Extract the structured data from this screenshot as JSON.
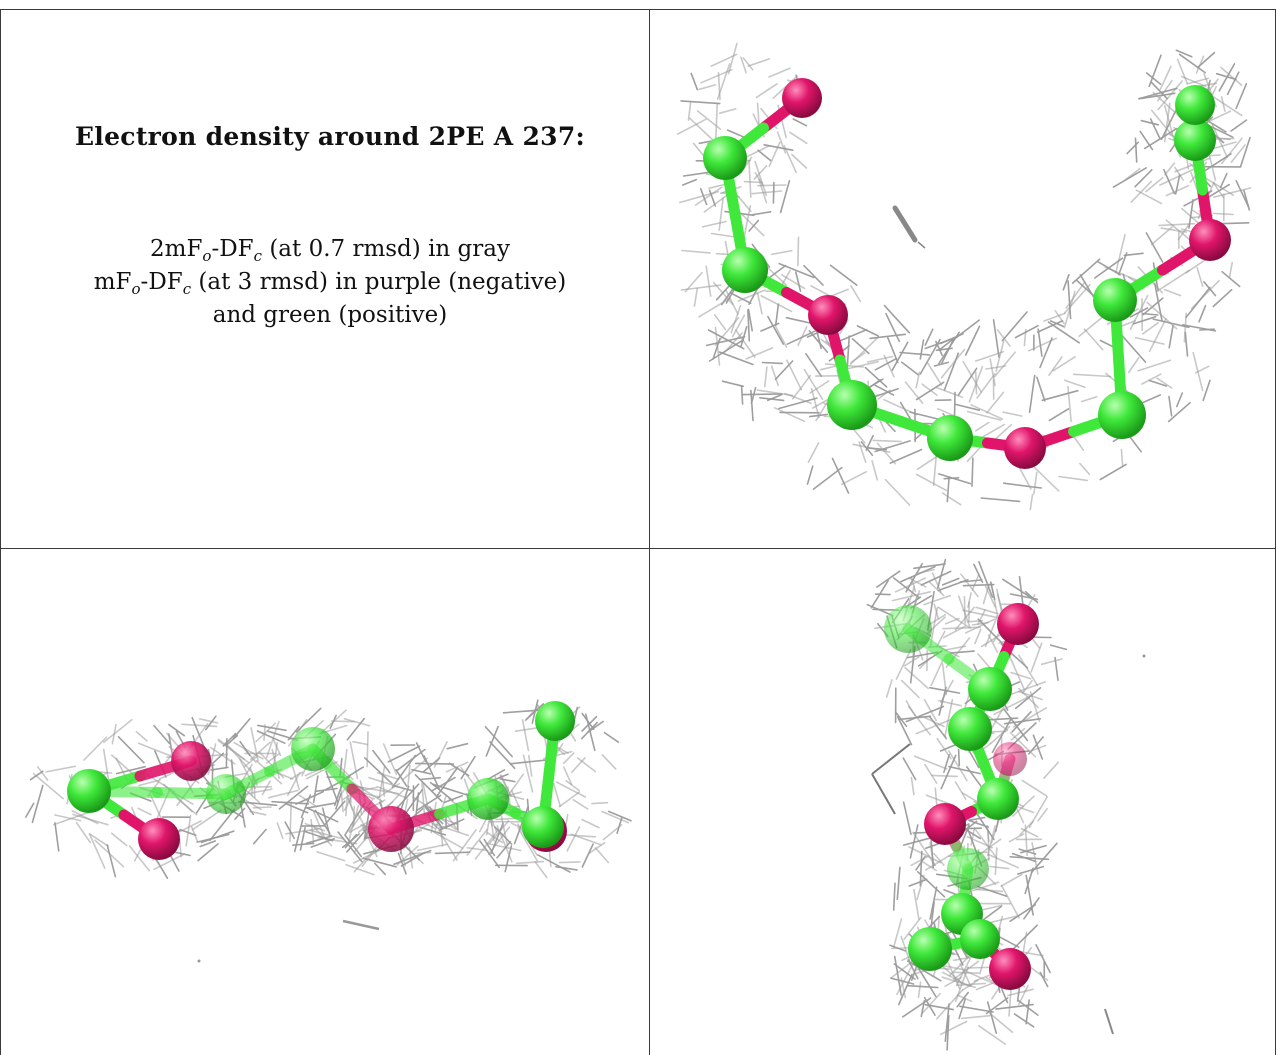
{
  "caption": {
    "title": "Electron density around 2PE A 237:",
    "line1": {
      "pre": "2mF",
      "sub1": "o",
      "mid": "-DF",
      "sub2": "c",
      "post": " (at 0.7 rmsd) in gray"
    },
    "line2": {
      "pre": "mF",
      "sub1": "o",
      "mid": "-DF",
      "sub2": "c",
      "post": " (at 3 rmsd) in purple (negative)"
    },
    "line3": "and green (positive)"
  },
  "colors": {
    "mesh": "#9a9a9a",
    "carbon": "#3fe83a",
    "oxygen": "#e0156a",
    "border": "#3a3a3a"
  },
  "views": [
    {
      "id": "top-right"
    },
    {
      "id": "bottom-left"
    },
    {
      "id": "bottom-right"
    }
  ]
}
